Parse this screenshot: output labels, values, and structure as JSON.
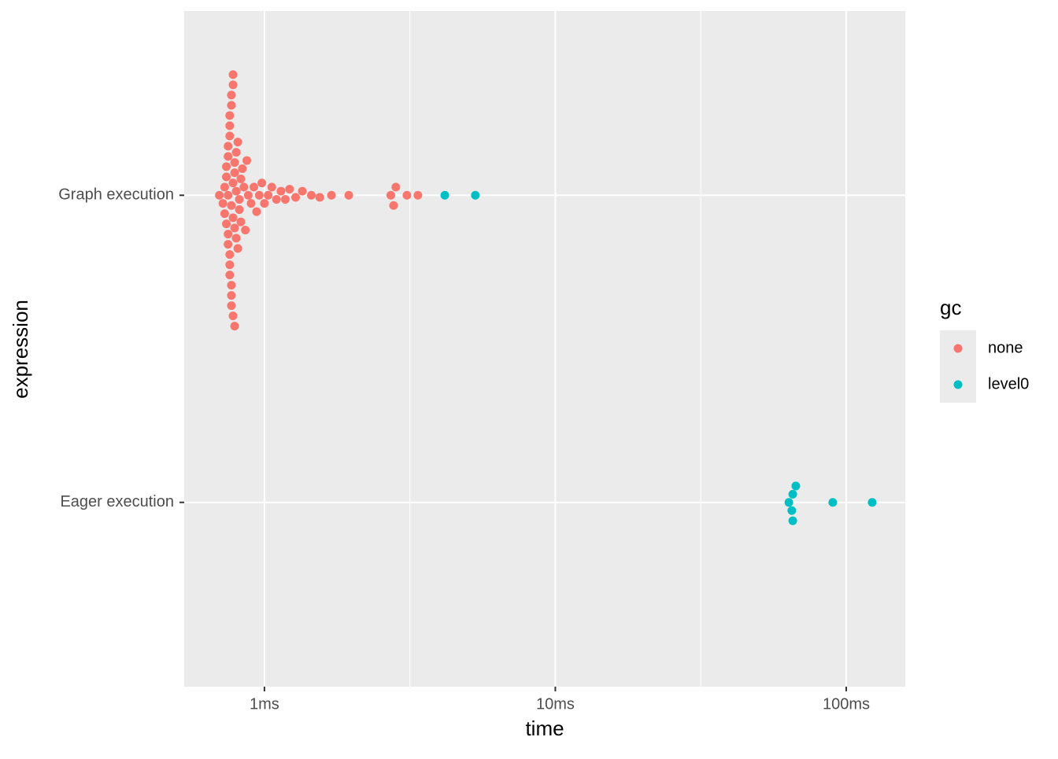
{
  "chart_data": {
    "type": "swarm",
    "x_label": "time",
    "y_label": "expression",
    "categories": [
      "Graph execution",
      "Eager execution"
    ],
    "log_x": true,
    "xlim": [
      0.53,
      159.6
    ],
    "xticks": [
      {
        "value": 1,
        "label": "1ms"
      },
      {
        "value": 10,
        "label": "10ms"
      },
      {
        "value": 100,
        "label": "100ms"
      }
    ],
    "grid": true,
    "legend_title": "gc",
    "legend_position": "right",
    "series": [
      {
        "name": "none",
        "color": "#F8766D",
        "values": [
          [
            0.7,
            0.72,
            0.73,
            0.73,
            0.74,
            0.74,
            0.74,
            0.75,
            0.75,
            0.75,
            0.75,
            0.75,
            0.76,
            0.76,
            0.76,
            0.76,
            0.76,
            0.76,
            0.77,
            0.77,
            0.77,
            0.77,
            0.77,
            0.77,
            0.78,
            0.78,
            0.78,
            0.78,
            0.78,
            0.79,
            0.79,
            0.79,
            0.79,
            0.8,
            0.8,
            0.8,
            0.81,
            0.81,
            0.82,
            0.82,
            0.83,
            0.83,
            0.84,
            0.85,
            0.86,
            0.87,
            0.88,
            0.9,
            0.92,
            0.94,
            0.96,
            0.98,
            1.0,
            1.03,
            1.06,
            1.1,
            1.14,
            1.18,
            1.22,
            1.28,
            1.35,
            1.45,
            1.55,
            1.7,
            1.95,
            2.72,
            2.78,
            2.83,
            3.09,
            3.37
          ],
          []
        ]
      },
      {
        "name": "level0",
        "color": "#00BFC4",
        "values": [
          [
            4.17,
            5.31
          ],
          [
            65.5,
            67.1,
            122.8,
            63.5,
            89.9,
            65.0,
            65.5
          ]
        ]
      }
    ]
  }
}
